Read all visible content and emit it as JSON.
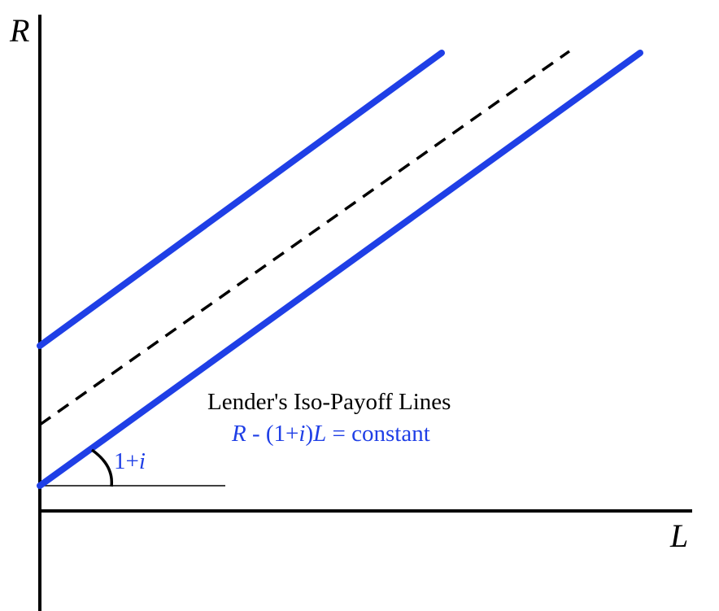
{
  "diagram": {
    "axis_y_label": "R",
    "axis_x_label": "L",
    "title": "Lender's Iso-Payoff Lines",
    "equation": {
      "part1": "R",
      "part2": " - (1+",
      "part3": "i",
      "part4": ")",
      "part5": "L",
      "part6": " = constant"
    },
    "slope_label": {
      "text": "1+",
      "var": "i"
    },
    "colors": {
      "iso_line": "#1f3fe6",
      "dashed_line": "#000000",
      "axes": "#000000",
      "equation_text": "#1f3fe6"
    },
    "lines": [
      {
        "style": "solid",
        "description_hidden": true
      },
      {
        "style": "dashed"
      },
      {
        "style": "solid"
      }
    ]
  }
}
